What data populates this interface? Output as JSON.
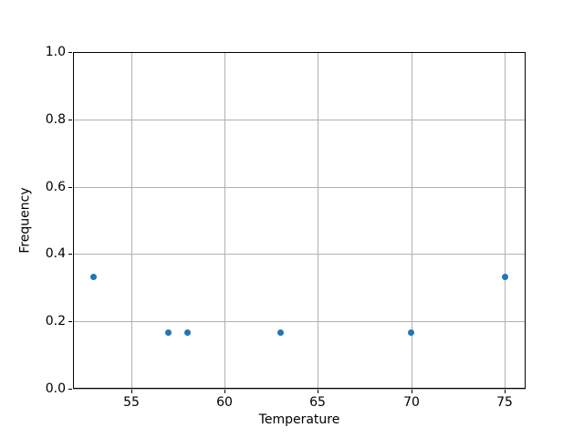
{
  "chart_data": {
    "type": "scatter",
    "title": "",
    "xlabel": "Temperature",
    "ylabel": "Frequency",
    "x": [
      53,
      57,
      58,
      63,
      70,
      75
    ],
    "y": [
      0.3333,
      0.1667,
      0.1667,
      0.1667,
      0.1667,
      0.3333
    ],
    "xlim": [
      51.9,
      76.1
    ],
    "ylim": [
      0.0,
      1.0
    ],
    "xticks": [
      55,
      60,
      65,
      70,
      75
    ],
    "xtick_labels": [
      "55",
      "60",
      "65",
      "70",
      "75"
    ],
    "yticks": [
      0.0,
      0.2,
      0.4,
      0.6,
      0.8,
      1.0
    ],
    "ytick_labels": [
      "0.0",
      "0.2",
      "0.4",
      "0.6",
      "0.8",
      "1.0"
    ],
    "grid": true,
    "legend": "none",
    "marker_color": "#1f77b4",
    "grid_color": "#b0b0b0",
    "spine_color": "#000000",
    "background": "#ffffff"
  }
}
